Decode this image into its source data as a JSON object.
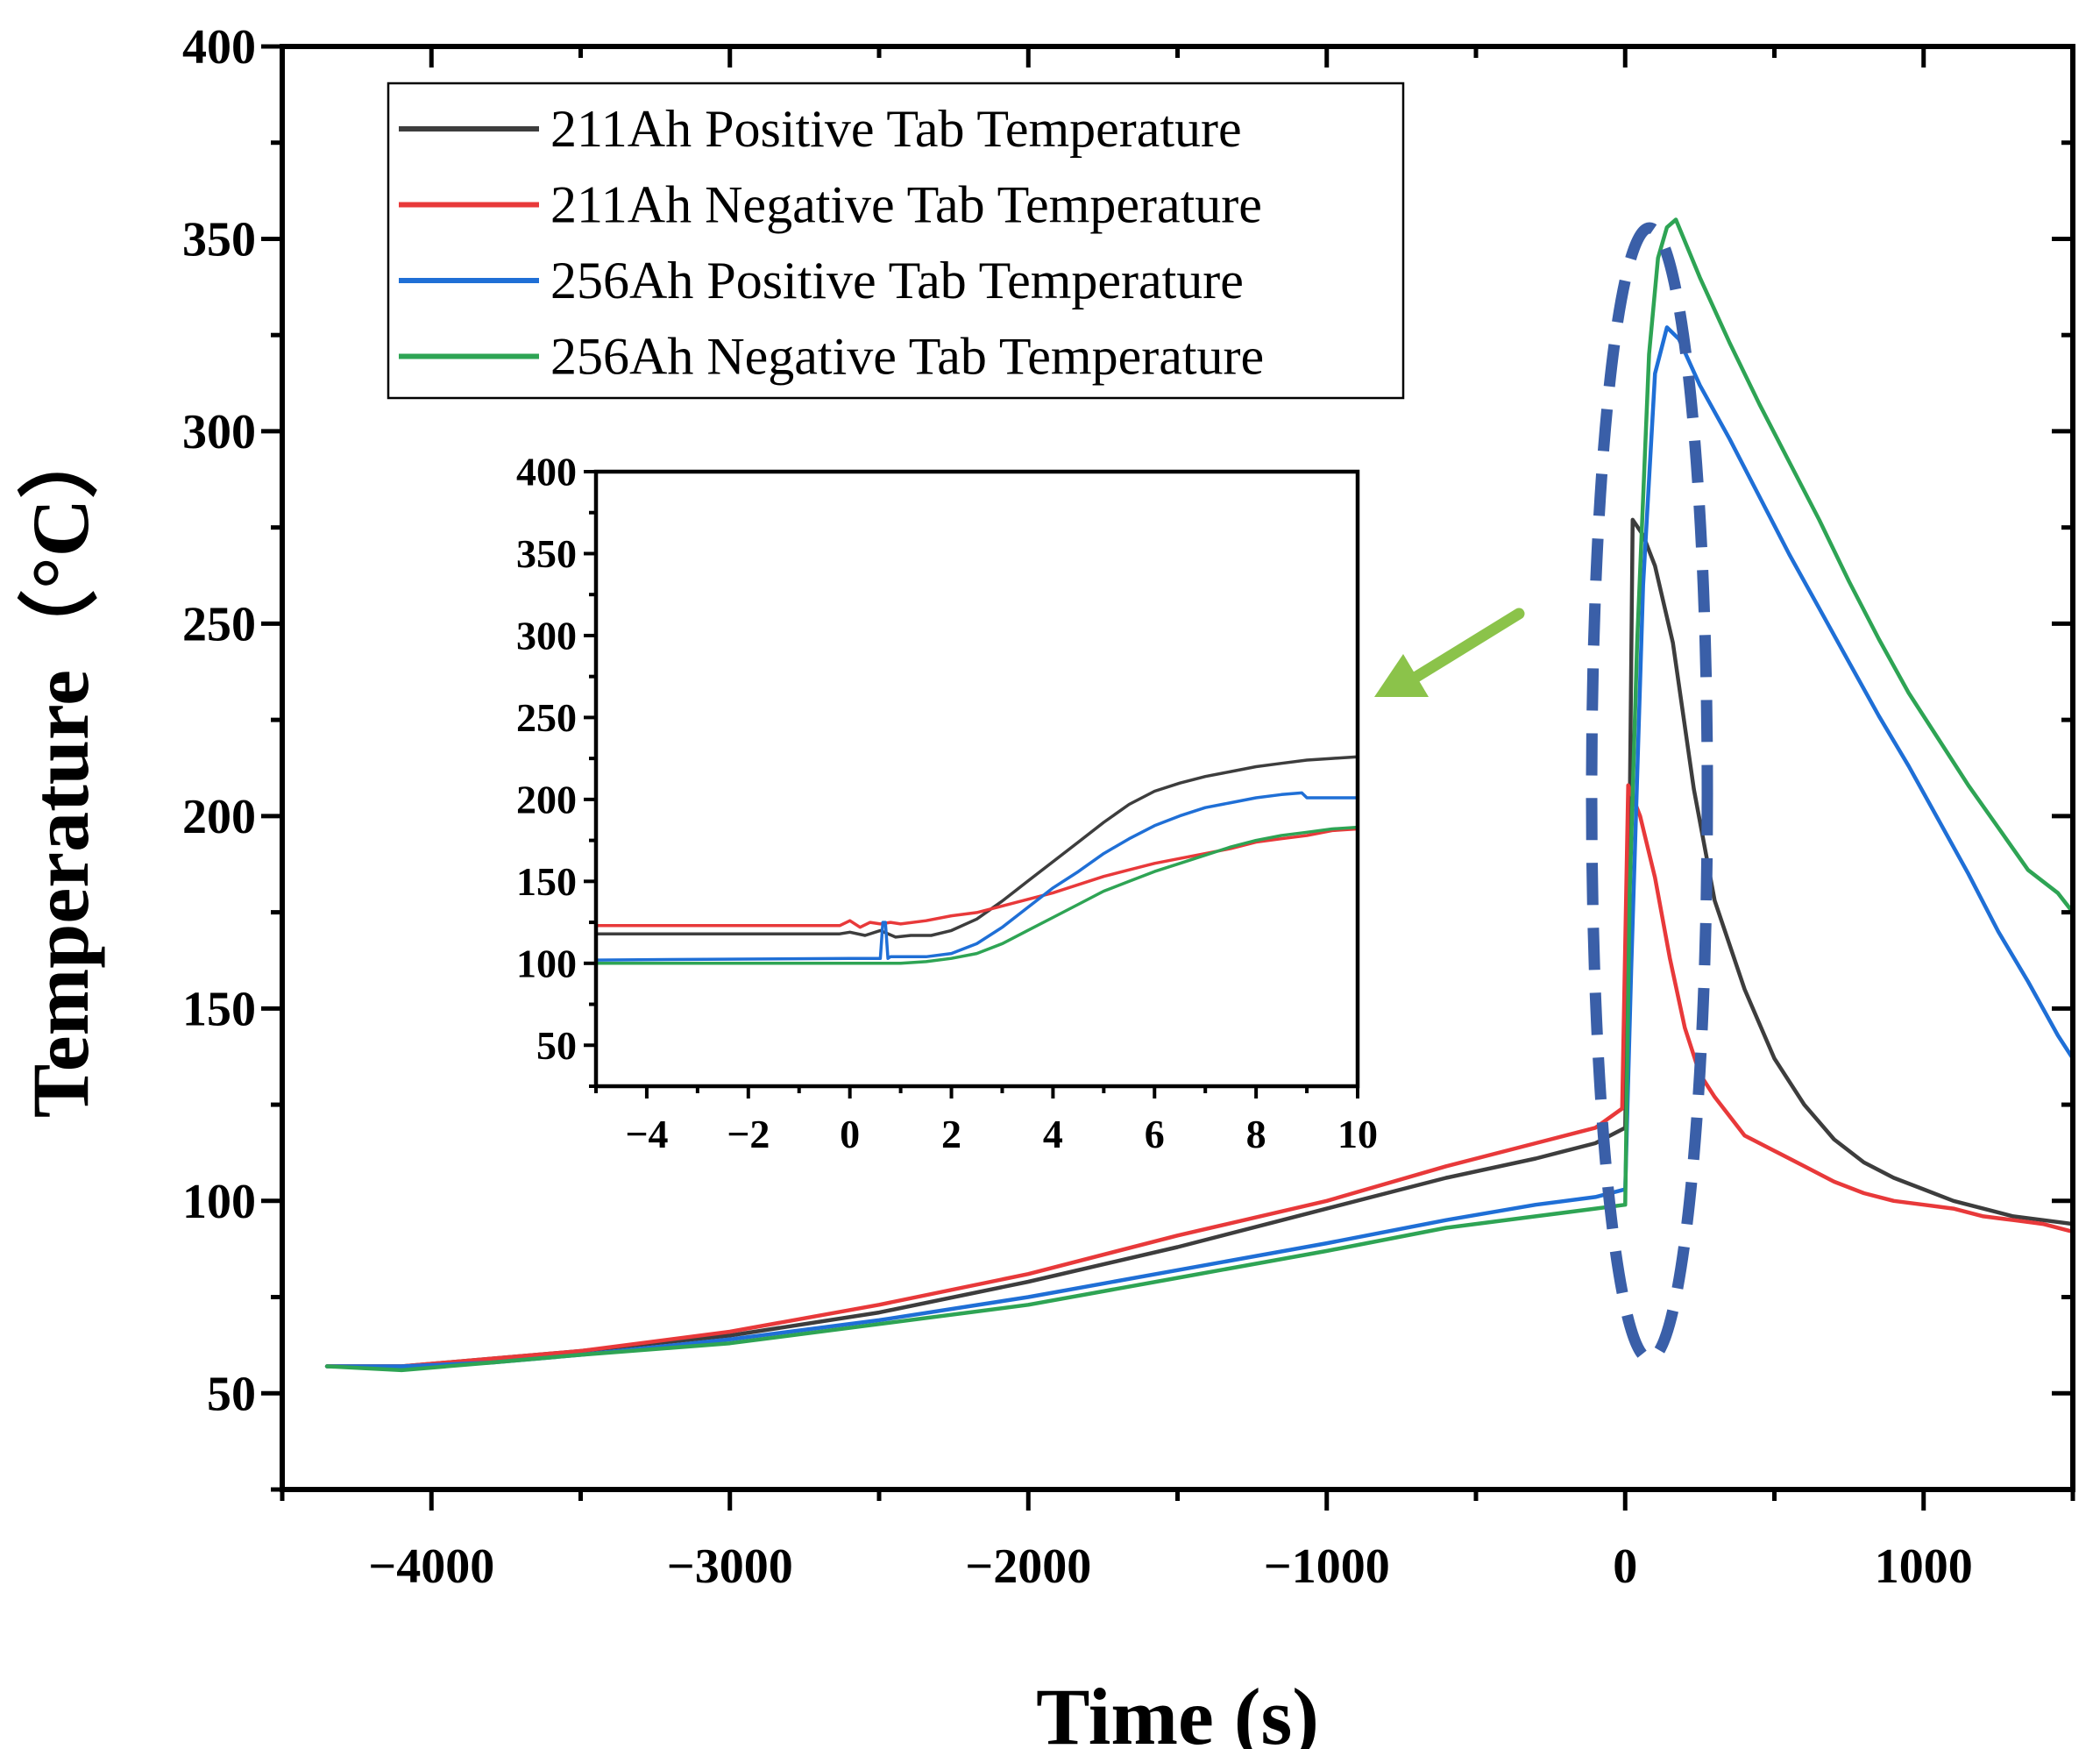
{
  "colors": {
    "series_211_pos": "#3d3d3d",
    "series_211_neg": "#e8393a",
    "series_256_pos": "#1f6fd6",
    "series_256_neg": "#2ea454",
    "highlight": "#3a5fa8",
    "arrow": "#8bc34a"
  },
  "chart_data": [
    {
      "id": "main",
      "type": "line",
      "xlabel": "Time (s)",
      "ylabel": "Temperature（°C）",
      "xlim": [
        -4500,
        1500
      ],
      "ylim": [
        25,
        400
      ],
      "xticks": [
        -4000,
        -3000,
        -2000,
        -1000,
        0,
        1000
      ],
      "xtick_labels": [
        "−4000",
        "−3000",
        "−2000",
        "−1000",
        "0",
        "1000"
      ],
      "yticks": [
        50,
        100,
        150,
        200,
        250,
        300,
        350,
        400
      ],
      "ytick_labels": [
        "50",
        "100",
        "150",
        "200",
        "250",
        "300",
        "350",
        "400"
      ],
      "legend_position": "top-left",
      "annotations": [
        "dashed ellipse around the thermal-runaway peaks near t = 0",
        "arrow pointing from the peaks to the inset"
      ],
      "series": [
        {
          "name": "211Ah Positive Tab Temperature",
          "color_key": "series_211_pos",
          "x": [
            -4350,
            -4100,
            -3800,
            -3500,
            -3000,
            -2500,
            -2000,
            -1500,
            -1000,
            -600,
            -300,
            -100,
            0,
            15,
            25,
            60,
            100,
            160,
            230,
            300,
            400,
            500,
            600,
            700,
            800,
            900,
            1000,
            1100,
            1200,
            1300,
            1400,
            1500
          ],
          "y": [
            57,
            57,
            59,
            61,
            65,
            71,
            79,
            88,
            98,
            106,
            111,
            115,
            119,
            200,
            277,
            273,
            265,
            245,
            207,
            178,
            155,
            137,
            125,
            116,
            110,
            106,
            103,
            100,
            98,
            96,
            95,
            94
          ]
        },
        {
          "name": "211Ah Negative Tab Temperature",
          "color_key": "series_211_neg",
          "x": [
            -4350,
            -4100,
            -3800,
            -3500,
            -3000,
            -2500,
            -2000,
            -1500,
            -1000,
            -600,
            -300,
            -100,
            -10,
            10,
            25,
            50,
            100,
            150,
            200,
            250,
            300,
            400,
            500,
            600,
            700,
            800,
            900,
            1000,
            1100,
            1200,
            1300,
            1400,
            1500
          ],
          "y": [
            57,
            57,
            59,
            61,
            66,
            73,
            81,
            91,
            100,
            109,
            115,
            119,
            124,
            208,
            205,
            200,
            184,
            163,
            145,
            133,
            127,
            117,
            113,
            109,
            105,
            102,
            100,
            99,
            98,
            96,
            95,
            94,
            92
          ]
        },
        {
          "name": "256Ah Positive Tab Temperature",
          "color_key": "series_256_pos",
          "x": [
            -4350,
            -4100,
            -3800,
            -3500,
            -3000,
            -2500,
            -2000,
            -1500,
            -1000,
            -600,
            -300,
            -100,
            0,
            20,
            60,
            100,
            140,
            180,
            250,
            350,
            450,
            550,
            650,
            750,
            850,
            950,
            1050,
            1150,
            1250,
            1350,
            1450,
            1500
          ],
          "y": [
            57,
            57,
            58,
            60,
            64,
            69,
            75,
            82,
            89,
            95,
            99,
            101,
            103,
            160,
            260,
            315,
            327,
            324,
            312,
            298,
            283,
            268,
            254,
            240,
            226,
            213,
            199,
            185,
            170,
            157,
            143,
            137
          ]
        },
        {
          "name": "256Ah Negative Tab Temperature",
          "color_key": "series_256_neg",
          "x": [
            -4350,
            -4100,
            -3800,
            -3500,
            -3000,
            -2500,
            -2000,
            -1500,
            -1000,
            -600,
            -300,
            -100,
            0,
            15,
            40,
            80,
            110,
            140,
            170,
            250,
            350,
            450,
            550,
            650,
            750,
            850,
            950,
            1050,
            1150,
            1250,
            1350,
            1450,
            1500
          ],
          "y": [
            57,
            56,
            58,
            60,
            63,
            68,
            73,
            80,
            87,
            93,
            96,
            98,
            99,
            180,
            245,
            320,
            345,
            353,
            355,
            340,
            323,
            307,
            292,
            277,
            261,
            246,
            232,
            220,
            208,
            197,
            186,
            180,
            175
          ]
        }
      ]
    },
    {
      "id": "inset",
      "type": "line",
      "xlabel": "",
      "ylabel": "",
      "xlim": [
        -5,
        10
      ],
      "ylim": [
        25,
        400
      ],
      "xticks": [
        -4,
        -2,
        0,
        2,
        4,
        6,
        8,
        10
      ],
      "xtick_labels": [
        "−4",
        "−2",
        "0",
        "2",
        "4",
        "6",
        "8",
        "10"
      ],
      "yticks": [
        50,
        100,
        150,
        200,
        250,
        300,
        350,
        400
      ],
      "ytick_labels": [
        "50",
        "100",
        "150",
        "200",
        "250",
        "300",
        "350",
        "400"
      ],
      "series": [
        {
          "name": "211Ah Positive Tab Temperature",
          "color_key": "series_211_pos",
          "x": [
            -5,
            -0.2,
            0,
            0.3,
            0.6,
            0.9,
            1.2,
            1.6,
            2,
            2.5,
            3,
            3.5,
            4,
            4.5,
            5,
            5.5,
            6,
            6.5,
            7,
            7.5,
            8,
            8.5,
            9,
            9.5,
            10
          ],
          "y": [
            118,
            118,
            119,
            117,
            120,
            116,
            117,
            117,
            120,
            127,
            138,
            150,
            162,
            174,
            186,
            197,
            205,
            210,
            214,
            217,
            220,
            222,
            224,
            225,
            226
          ]
        },
        {
          "name": "211Ah Negative Tab Temperature",
          "color_key": "series_211_neg",
          "x": [
            -5,
            -0.2,
            0,
            0.2,
            0.4,
            0.6,
            0.8,
            1,
            1.5,
            2,
            2.5,
            3,
            3.5,
            4,
            4.5,
            5,
            5.5,
            6,
            6.5,
            7,
            7.5,
            8,
            8.5,
            9,
            9.5,
            10
          ],
          "y": [
            123,
            123,
            126,
            122,
            125,
            124,
            125,
            124,
            126,
            129,
            131,
            135,
            139,
            143,
            148,
            153,
            157,
            161,
            164,
            167,
            170,
            174,
            176,
            178,
            181,
            182
          ]
        },
        {
          "name": "256Ah Positive Tab Temperature",
          "color_key": "series_256_pos",
          "x": [
            -5,
            0,
            0.6,
            0.65,
            0.7,
            0.75,
            0.8,
            1,
            1.5,
            2,
            2.5,
            3,
            3.5,
            4,
            4.5,
            5,
            5.5,
            6,
            6.5,
            7,
            7.5,
            8,
            8.5,
            8.9,
            9,
            9.5,
            10
          ],
          "y": [
            102,
            103,
            103,
            125,
            125,
            103,
            104,
            104,
            104,
            106,
            112,
            122,
            134,
            146,
            156,
            167,
            176,
            184,
            190,
            195,
            198,
            201,
            203,
            204,
            201,
            201,
            201
          ]
        },
        {
          "name": "256Ah Negative Tab Temperature",
          "color_key": "series_256_neg",
          "x": [
            -5,
            0,
            0.5,
            1,
            1.5,
            2,
            2.5,
            3,
            3.5,
            4,
            4.5,
            5,
            5.5,
            6,
            6.5,
            7,
            7.5,
            8,
            8.5,
            9,
            9.5,
            10
          ],
          "y": [
            100,
            100,
            100,
            100,
            101,
            103,
            106,
            112,
            120,
            128,
            136,
            144,
            150,
            156,
            161,
            166,
            171,
            175,
            178,
            180,
            182,
            183
          ]
        }
      ]
    }
  ]
}
